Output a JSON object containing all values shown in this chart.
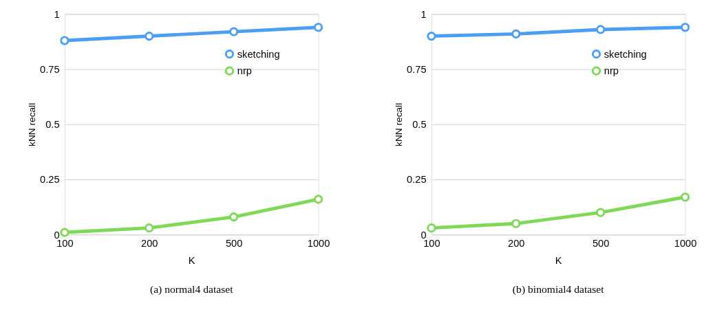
{
  "chart_data": [
    {
      "type": "line",
      "xlabel": "K",
      "ylabel": "kNN recall",
      "annotations": [
        "(a) normal4 dataset"
      ],
      "categories": [
        "100",
        "200",
        "500",
        "1000"
      ],
      "series": [
        {
          "name": "sketching",
          "color": "#4a9ff5",
          "values": [
            0.88,
            0.9,
            0.92,
            0.94
          ]
        },
        {
          "name": "nrp",
          "color": "#7ed957",
          "values": [
            0.01,
            0.03,
            0.08,
            0.16
          ]
        }
      ],
      "ylim": [
        0,
        1
      ],
      "yticks": [
        0,
        0.25,
        0.5,
        0.75,
        1
      ],
      "grid": "y",
      "legend": "top right",
      "marker": "circle",
      "line_style": "solid"
    },
    {
      "type": "line",
      "xlabel": "K",
      "ylabel": "kNN recall",
      "annotations": [
        "(b) binomial4 dataset"
      ],
      "categories": [
        "100",
        "200",
        "500",
        "1000"
      ],
      "series": [
        {
          "name": "sketching",
          "color": "#4a9ff5",
          "values": [
            0.9,
            0.91,
            0.93,
            0.94
          ]
        },
        {
          "name": "nrp",
          "color": "#7ed957",
          "values": [
            0.03,
            0.05,
            0.1,
            0.17
          ]
        }
      ],
      "ylim": [
        0,
        1
      ],
      "yticks": [
        0,
        0.25,
        0.5,
        0.75,
        1
      ],
      "grid": "y",
      "legend": "top right",
      "marker": "circle",
      "line_style": "solid"
    }
  ]
}
